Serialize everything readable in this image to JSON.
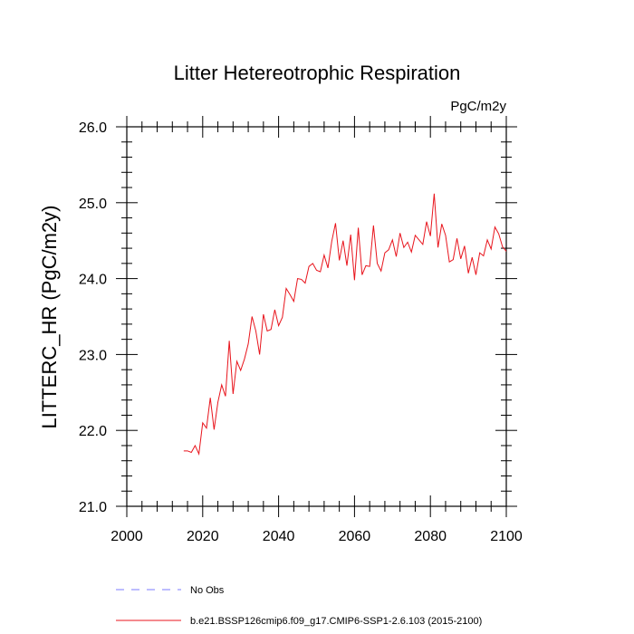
{
  "chart_data": {
    "type": "line",
    "title": "Litter Hetereotrophic Respiration",
    "units_label": "PgC/m2y",
    "ylabel": "LITTERC_HR  (PgC/m2y)",
    "xlabel": "",
    "xlim": [
      2000,
      2100
    ],
    "ylim": [
      21.0,
      26.0
    ],
    "x_ticks": [
      "2000",
      "2020",
      "2040",
      "2060",
      "2080",
      "2100"
    ],
    "y_ticks": [
      "21.0",
      "22.0",
      "23.0",
      "24.0",
      "25.0",
      "26.0"
    ],
    "grid": false,
    "legend_position": "bottom",
    "series": [
      {
        "name": "b.e21.BSSP126cmip6.f09_g17.CMIP6-SSP1-2.6.103 (2015-2100)",
        "color": "#e8141c",
        "style": "solid",
        "x": [
          2015,
          2016,
          2017,
          2018,
          2019,
          2020,
          2021,
          2022,
          2023,
          2024,
          2025,
          2026,
          2027,
          2028,
          2029,
          2030,
          2031,
          2032,
          2033,
          2034,
          2035,
          2036,
          2037,
          2038,
          2039,
          2040,
          2041,
          2042,
          2043,
          2044,
          2045,
          2046,
          2047,
          2048,
          2049,
          2050,
          2051,
          2052,
          2053,
          2054,
          2055,
          2056,
          2057,
          2058,
          2059,
          2060,
          2061,
          2062,
          2063,
          2064,
          2065,
          2066,
          2067,
          2068,
          2069,
          2070,
          2071,
          2072,
          2073,
          2074,
          2075,
          2076,
          2077,
          2078,
          2079,
          2080,
          2081,
          2082,
          2083,
          2084,
          2085,
          2086,
          2087,
          2088,
          2089,
          2090,
          2091,
          2092,
          2093,
          2094,
          2095,
          2096,
          2097,
          2098,
          2099,
          2100
        ],
        "values": [
          21.73,
          21.73,
          21.71,
          21.8,
          21.69,
          22.1,
          22.03,
          22.43,
          22.01,
          22.37,
          22.6,
          22.45,
          23.18,
          22.48,
          22.91,
          22.79,
          22.94,
          23.14,
          23.5,
          23.31,
          23.0,
          23.53,
          23.31,
          23.33,
          23.59,
          23.38,
          23.49,
          23.87,
          23.79,
          23.7,
          24.0,
          23.99,
          23.94,
          24.16,
          24.2,
          24.11,
          24.09,
          24.31,
          24.14,
          24.49,
          24.73,
          24.24,
          24.5,
          24.17,
          24.58,
          23.98,
          24.67,
          24.05,
          24.17,
          24.16,
          24.7,
          24.2,
          24.1,
          24.34,
          24.38,
          24.51,
          24.29,
          24.6,
          24.41,
          24.48,
          24.35,
          24.57,
          24.51,
          24.45,
          24.75,
          24.56,
          25.12,
          24.41,
          24.72,
          24.57,
          24.22,
          24.25,
          24.53,
          24.26,
          24.43,
          24.07,
          24.28,
          24.05,
          24.34,
          24.3,
          24.51,
          24.39,
          24.68,
          24.59,
          24.42,
          24.36
        ]
      },
      {
        "name": "No Obs",
        "color": "#7b7bff",
        "style": "dashed",
        "x": [],
        "values": []
      }
    ]
  }
}
